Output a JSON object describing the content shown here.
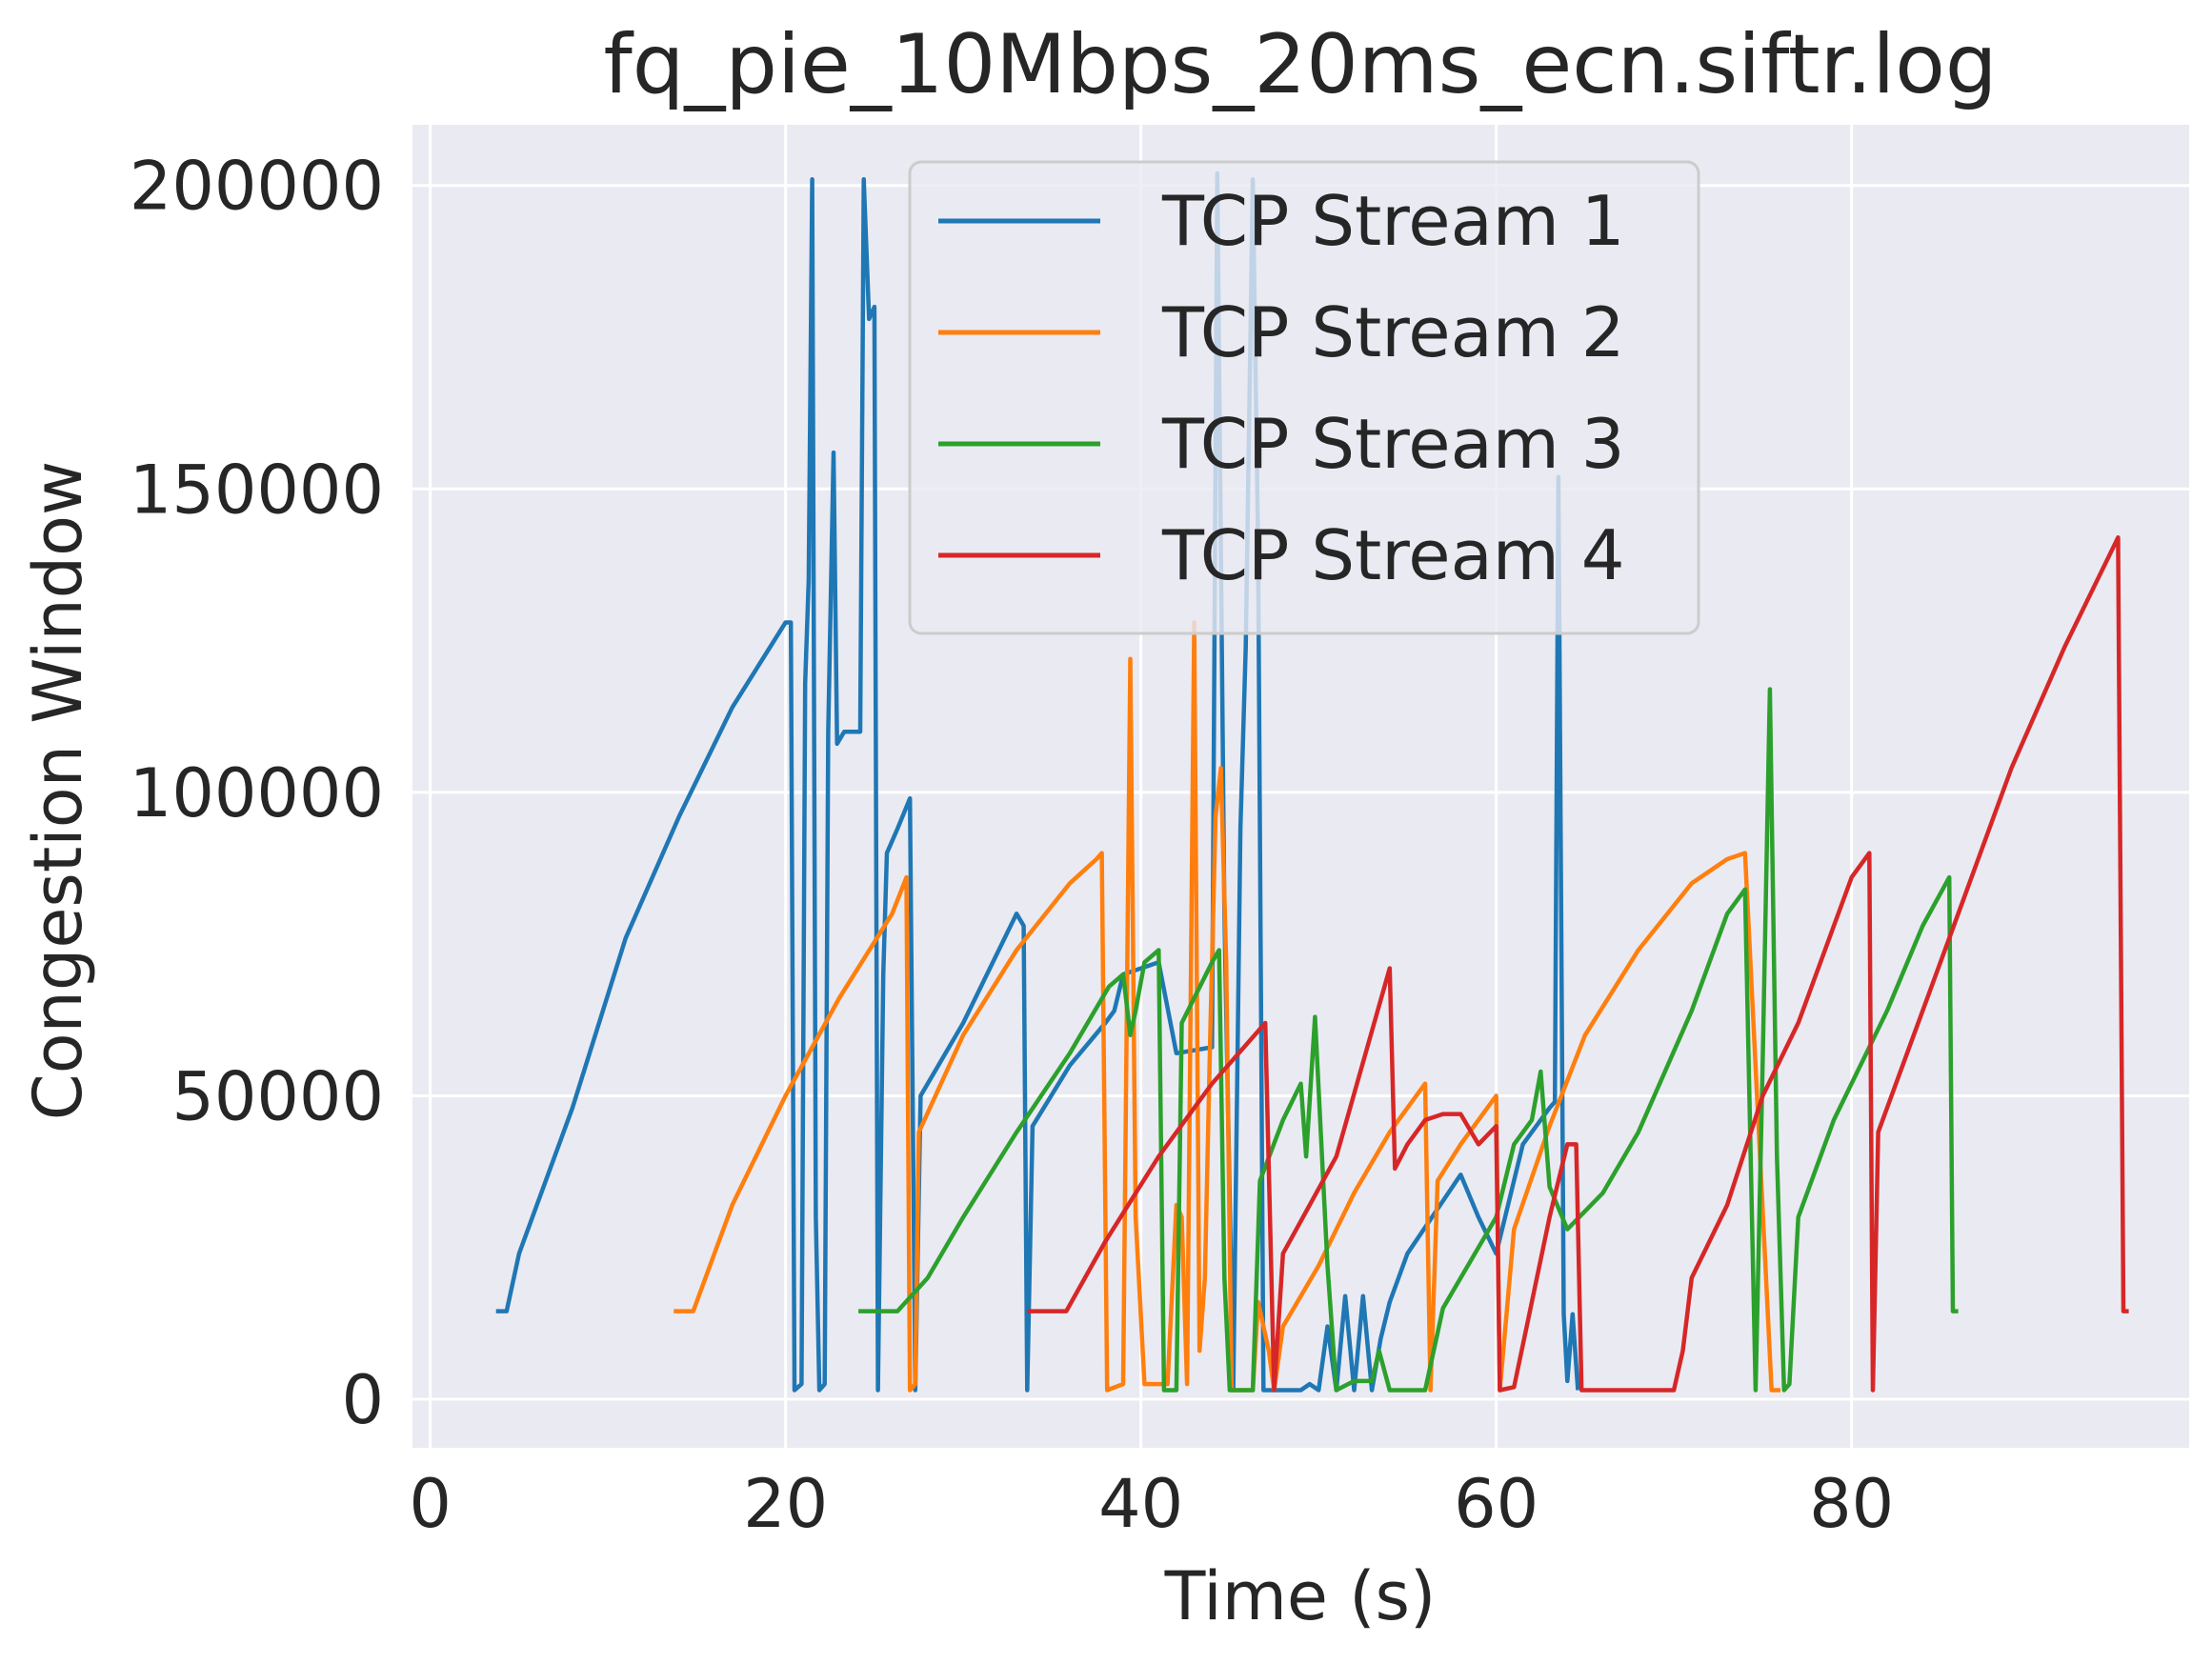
{
  "chart_data": {
    "type": "line",
    "title": "fq_pie_10Mbps_20ms_ecn.siftr.log",
    "xlabel": "Time (s)",
    "ylabel": "Congestion Window",
    "xlim": [
      -1,
      99
    ],
    "ylim": [
      -8000,
      210000
    ],
    "x_ticks": [
      0,
      20,
      40,
      60,
      80
    ],
    "x_tick_labels": [
      "0",
      "20",
      "40",
      "60",
      "80"
    ],
    "y_ticks": [
      0,
      50000,
      100000,
      150000,
      200000
    ],
    "y_tick_labels": [
      "0",
      "50000",
      "100000",
      "150000",
      "200000"
    ],
    "grid": true,
    "legend_position": "upper-center",
    "background": "#eaeaf2",
    "series": [
      {
        "name": "TCP Stream 1",
        "color": "#1f77b4",
        "points": [
          [
            3.7,
            14500
          ],
          [
            4.3,
            14500
          ],
          [
            5,
            24000
          ],
          [
            8,
            48000
          ],
          [
            11,
            76000
          ],
          [
            14,
            96000
          ],
          [
            17,
            114000
          ],
          [
            20,
            128000
          ],
          [
            20.3,
            128000
          ],
          [
            20.5,
            1500
          ],
          [
            20.9,
            2500
          ],
          [
            21.1,
            118000
          ],
          [
            21.3,
            135000
          ],
          [
            21.5,
            201000
          ],
          [
            21.7,
            30000
          ],
          [
            21.9,
            1500
          ],
          [
            22.2,
            2500
          ],
          [
            22.4,
            110000
          ],
          [
            22.7,
            156000
          ],
          [
            22.9,
            108000
          ],
          [
            23.3,
            110000
          ],
          [
            24.2,
            110000
          ],
          [
            24.4,
            201000
          ],
          [
            24.7,
            178000
          ],
          [
            25,
            180000
          ],
          [
            25.2,
            1500
          ],
          [
            25.5,
            70000
          ],
          [
            25.7,
            90000
          ],
          [
            26.3,
            94000
          ],
          [
            27,
            99000
          ],
          [
            27.3,
            1500
          ],
          [
            27.6,
            50000
          ],
          [
            30,
            62000
          ],
          [
            33,
            80000
          ],
          [
            33.4,
            78000
          ],
          [
            33.6,
            1500
          ],
          [
            33.9,
            45000
          ],
          [
            36,
            55000
          ],
          [
            38,
            62000
          ],
          [
            38.5,
            64000
          ],
          [
            39,
            70000
          ],
          [
            41,
            72000
          ],
          [
            42,
            57000
          ],
          [
            44,
            58000
          ],
          [
            44.3,
            202000
          ],
          [
            44.7,
            80000
          ],
          [
            45.2,
            1500
          ],
          [
            45.6,
            94000
          ],
          [
            45.9,
            124000
          ],
          [
            46.3,
            201000
          ],
          [
            46.6,
            140000
          ],
          [
            46.9,
            1500
          ],
          [
            49,
            1500
          ],
          [
            49.5,
            2500
          ],
          [
            50,
            1500
          ],
          [
            50.5,
            12000
          ],
          [
            51,
            1500
          ],
          [
            51.5,
            17000
          ],
          [
            52,
            1500
          ],
          [
            52.5,
            17000
          ],
          [
            53,
            1500
          ],
          [
            53.5,
            10000
          ],
          [
            54,
            16000
          ],
          [
            55,
            24000
          ],
          [
            58,
            37000
          ],
          [
            59,
            30000
          ],
          [
            60,
            24000
          ],
          [
            61.5,
            42000
          ],
          [
            63,
            48000
          ],
          [
            63.3,
            49000
          ],
          [
            63.5,
            152000
          ],
          [
            63.8,
            14000
          ],
          [
            64,
            3000
          ],
          [
            64.3,
            14000
          ],
          [
            64.6,
            1500
          ]
        ]
      },
      {
        "name": "TCP Stream 2",
        "color": "#ff7f0e",
        "points": [
          [
            13.7,
            14500
          ],
          [
            14.8,
            14500
          ],
          [
            17,
            32000
          ],
          [
            20,
            50000
          ],
          [
            23,
            66000
          ],
          [
            26,
            80000
          ],
          [
            26.8,
            86000
          ],
          [
            27,
            1500
          ],
          [
            27.3,
            2500
          ],
          [
            27.5,
            44000
          ],
          [
            30,
            60000
          ],
          [
            33,
            74000
          ],
          [
            36,
            85000
          ],
          [
            37.5,
            89000
          ],
          [
            37.8,
            90000
          ],
          [
            38.1,
            1500
          ],
          [
            39,
            2500
          ],
          [
            39.4,
            122000
          ],
          [
            39.7,
            30000
          ],
          [
            40.2,
            2500
          ],
          [
            41.5,
            2500
          ],
          [
            42,
            32000
          ],
          [
            42.3,
            30000
          ],
          [
            42.6,
            2500
          ],
          [
            43,
            128000
          ],
          [
            43.3,
            8000
          ],
          [
            43.6,
            20000
          ],
          [
            43.9,
            60000
          ],
          [
            44.2,
            96000
          ],
          [
            44.5,
            104000
          ],
          [
            44.8,
            72000
          ],
          [
            45.1,
            1500
          ],
          [
            46.3,
            1500
          ],
          [
            46.6,
            16000
          ],
          [
            47.2,
            8000
          ],
          [
            47.5,
            1500
          ],
          [
            48,
            12000
          ],
          [
            50,
            22000
          ],
          [
            52,
            34000
          ],
          [
            54,
            44000
          ],
          [
            55.5,
            50000
          ],
          [
            56,
            52000
          ],
          [
            56.3,
            1500
          ],
          [
            56.7,
            36000
          ],
          [
            58,
            42000
          ],
          [
            60,
            50000
          ],
          [
            60.2,
            1500
          ],
          [
            61,
            28000
          ],
          [
            63,
            45000
          ],
          [
            65,
            60000
          ],
          [
            68,
            74000
          ],
          [
            71,
            85000
          ],
          [
            73,
            89000
          ],
          [
            74,
            90000
          ],
          [
            75.5,
            1500
          ],
          [
            76,
            1500
          ]
        ]
      },
      {
        "name": "TCP Stream 3",
        "color": "#2ca02c",
        "points": [
          [
            24.1,
            14500
          ],
          [
            26.3,
            14500
          ],
          [
            28,
            20000
          ],
          [
            30,
            30000
          ],
          [
            33,
            44000
          ],
          [
            36,
            57000
          ],
          [
            38.2,
            68000
          ],
          [
            39,
            70000
          ],
          [
            39.4,
            60000
          ],
          [
            39.7,
            64000
          ],
          [
            40.2,
            72000
          ],
          [
            41,
            74000
          ],
          [
            41.3,
            1500
          ],
          [
            42,
            1500
          ],
          [
            42.3,
            62000
          ],
          [
            44,
            72000
          ],
          [
            44.4,
            74000
          ],
          [
            44.7,
            20000
          ],
          [
            45,
            1500
          ],
          [
            46.3,
            1500
          ],
          [
            46.7,
            36000
          ],
          [
            48,
            46000
          ],
          [
            49,
            52000
          ],
          [
            49.3,
            40000
          ],
          [
            49.8,
            63000
          ],
          [
            50.5,
            22000
          ],
          [
            51,
            1500
          ],
          [
            52,
            3000
          ],
          [
            53,
            3000
          ],
          [
            53.4,
            8000
          ],
          [
            54,
            1500
          ],
          [
            56,
            1500
          ],
          [
            57,
            15000
          ],
          [
            60,
            30000
          ],
          [
            61,
            42000
          ],
          [
            62,
            46000
          ],
          [
            62.5,
            54000
          ],
          [
            63,
            35000
          ],
          [
            64,
            28000
          ],
          [
            66,
            34000
          ],
          [
            68,
            44000
          ],
          [
            71,
            64000
          ],
          [
            73,
            80000
          ],
          [
            74,
            84000
          ],
          [
            74.6,
            1500
          ],
          [
            75,
            56000
          ],
          [
            75.4,
            117000
          ],
          [
            75.8,
            40000
          ],
          [
            76.2,
            1500
          ],
          [
            76.5,
            2500
          ],
          [
            77,
            30000
          ],
          [
            79,
            46000
          ],
          [
            82,
            64000
          ],
          [
            84,
            78000
          ],
          [
            85.5,
            86000
          ],
          [
            85.7,
            14500
          ],
          [
            86,
            14500
          ]
        ]
      },
      {
        "name": "TCP Stream 4",
        "color": "#d62728",
        "points": [
          [
            33.6,
            14500
          ],
          [
            35.8,
            14500
          ],
          [
            38,
            26000
          ],
          [
            41,
            40000
          ],
          [
            44,
            52000
          ],
          [
            47,
            62000
          ],
          [
            47.5,
            1500
          ],
          [
            48,
            24000
          ],
          [
            51,
            40000
          ],
          [
            54,
            71000
          ],
          [
            54.3,
            38000
          ],
          [
            55,
            42000
          ],
          [
            56,
            46000
          ],
          [
            57,
            47000
          ],
          [
            58,
            47000
          ],
          [
            59,
            42000
          ],
          [
            60,
            45000
          ],
          [
            60.2,
            1500
          ],
          [
            61,
            2000
          ],
          [
            62,
            16000
          ],
          [
            63,
            30000
          ],
          [
            64,
            42000
          ],
          [
            64.5,
            42000
          ],
          [
            64.8,
            1500
          ],
          [
            66,
            1500
          ],
          [
            68,
            1500
          ],
          [
            69,
            1500
          ],
          [
            70,
            1500
          ],
          [
            70.5,
            8000
          ],
          [
            71,
            20000
          ],
          [
            73,
            32000
          ],
          [
            75,
            50000
          ],
          [
            77,
            62000
          ],
          [
            80,
            86000
          ],
          [
            81,
            90000
          ],
          [
            81.2,
            1500
          ],
          [
            81.5,
            44000
          ],
          [
            83,
            56000
          ],
          [
            86,
            80000
          ],
          [
            89,
            104000
          ],
          [
            92,
            124000
          ],
          [
            95,
            142000
          ],
          [
            95.3,
            14500
          ],
          [
            95.6,
            14500
          ]
        ]
      }
    ]
  }
}
